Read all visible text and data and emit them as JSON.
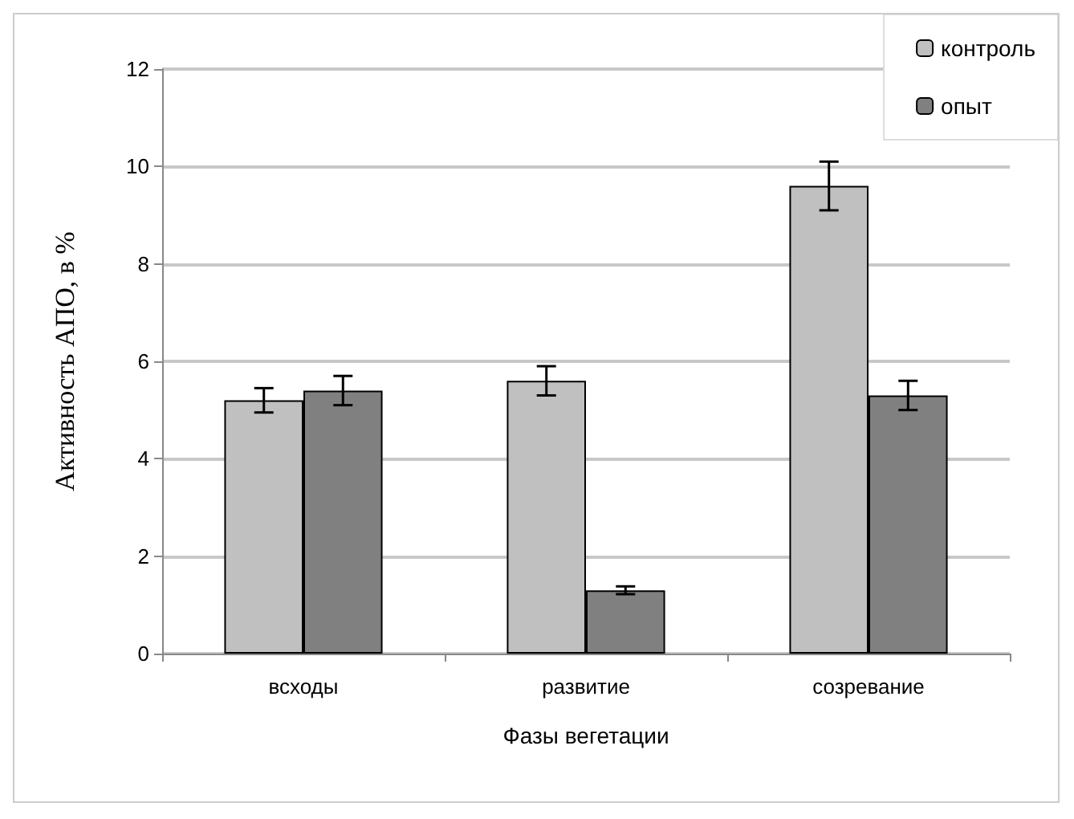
{
  "chart_data": {
    "type": "bar",
    "xlabel": "Фазы вегетации",
    "ylabel": "Активность АПО, в %",
    "categories": [
      "всходы",
      "развитие",
      "созревание"
    ],
    "series": [
      {
        "name": "контроль",
        "color": "#c0c0c0",
        "values": [
          5.2,
          5.6,
          9.6
        ],
        "errors": [
          0.25,
          0.3,
          0.5
        ]
      },
      {
        "name": "опыт",
        "color": "#808080",
        "values": [
          5.4,
          1.3,
          5.3
        ],
        "errors": [
          0.3,
          0.08,
          0.3
        ]
      }
    ],
    "ylim": [
      0,
      12
    ],
    "yticks": [
      0,
      2,
      4,
      6,
      8,
      10,
      12
    ],
    "grid": "y",
    "legend": "top right"
  }
}
